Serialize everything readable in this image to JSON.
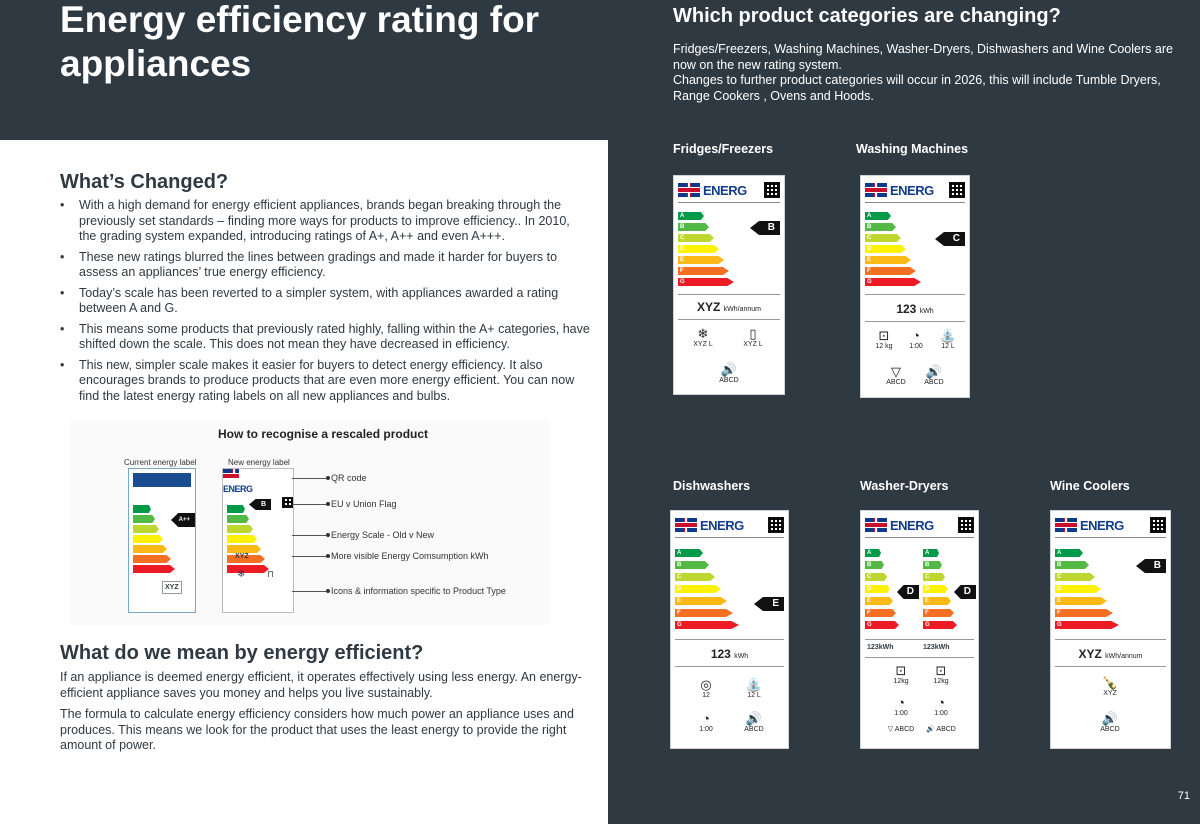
{
  "header": {
    "title": "Energy efficiency rating for appliances"
  },
  "categories": {
    "heading": "Which product categories are changing?",
    "intro": [
      "Fridges/Freezers, Washing Machines, Washer-Dryers, Dishwashers and Wine Coolers are now on the new rating system.",
      "Changes to further product categories will occur in 2026, this will include Tumble Dryers, Range Cookers , Ovens and Hoods."
    ],
    "labels": [
      {
        "name": "Fridges/Freezers",
        "rating": "B",
        "consumption": "XYZ",
        "unit": "kWh/annum"
      },
      {
        "name": "Washing Machines",
        "rating": "C",
        "consumption": "123",
        "unit": "kWh"
      },
      {
        "name": "Dishwashers",
        "rating": "E",
        "consumption": "123",
        "unit": "kWh"
      },
      {
        "name": "Washer-Dryers",
        "rating": "D",
        "rating2": "D",
        "consumption": "123",
        "unit": "kWh"
      },
      {
        "name": "Wine Coolers",
        "rating": "B",
        "consumption": "XYZ",
        "unit": "kWh/annum"
      }
    ],
    "scale": [
      "A",
      "B",
      "C",
      "D",
      "E",
      "F",
      "G"
    ],
    "energy_word": "ENERG",
    "scale_colors": [
      "#009a49",
      "#52b947",
      "#bed630",
      "#fef200",
      "#fcb814",
      "#f36f21",
      "#ed1c24"
    ]
  },
  "whats_changed": {
    "heading": "What’s Changed?",
    "bullets": [
      "With a high demand for energy efficient appliances, brands began breaking through the previously set standards – finding more ways for products to improve efficiency.. In 2010, the grading system expanded, introducing ratings of A+, A++ and even A+++.",
      "These new ratings blurred the lines between gradings and made it harder for buyers to assess an appliances’ true energy efficiency.",
      "Today’s scale has been reverted to a simpler system, with appliances awarded a rating between A and G.",
      "This means some products that previously rated highly, falling within the A+ categories, have shifted down the scale. This does not mean they have decreased in efficiency.",
      "This new, simpler scale makes it easier for buyers to detect energy efficiency. It also encourages brands to produce products that are even more energy efficient. You can now find the latest energy rating labels on all new appliances and bulbs."
    ]
  },
  "infographic": {
    "title": "How to recognise a rescaled product",
    "current_label": "Current energy label",
    "new_label": "New energy label",
    "callouts": [
      "QR code",
      "EU v Union Flag",
      "Energy Scale - Old v New",
      "More visible Energy Comsumption kWh",
      "Icons & information specific to Product Type"
    ],
    "old_rating": "A++",
    "new_rating": "B",
    "consumption": "XYZ"
  },
  "efficiency": {
    "heading": "What do we mean by energy efficient?",
    "paragraphs": [
      "If an appliance is deemed energy efficient, it operates effectively using less energy. An energy-efficient appliance saves you money and helps you live sustainably.",
      "The formula to calculate energy efficiency considers how much power an appliance uses and produces. This means we look for the product that uses the least energy to provide the right amount of power."
    ]
  },
  "page_number": "71"
}
